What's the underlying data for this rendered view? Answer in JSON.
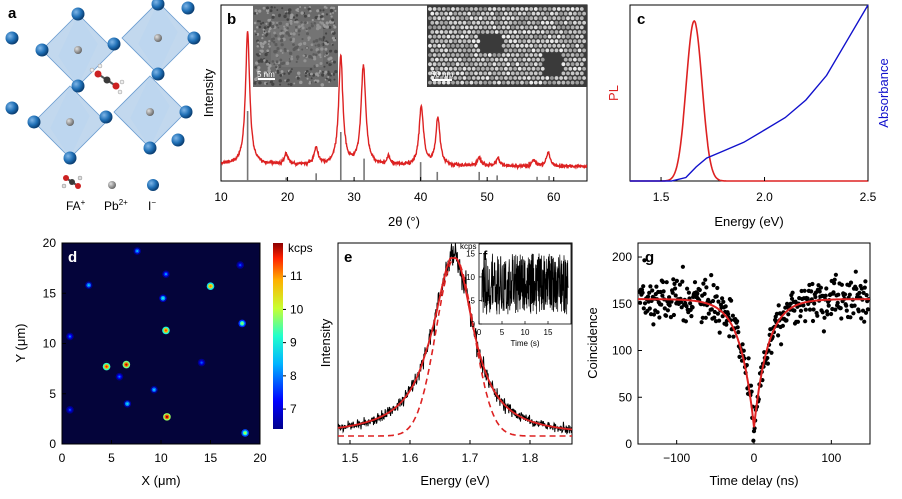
{
  "figure": {
    "panel_labels": [
      "a",
      "b",
      "c",
      "d",
      "e",
      "f",
      "g"
    ]
  },
  "legend_a": {
    "fa_label": "FA",
    "fa_sup": "+",
    "pb_label": "Pb",
    "pb_sup": "2+",
    "i_label": "I",
    "i_sup": "−",
    "colors": {
      "octahedron": "#8fb8e0",
      "iodide": "#1f6fb5",
      "lead": "#8a8a8a",
      "fa_c": "#3a3a3a",
      "fa_n": "#cc2222"
    }
  },
  "chart_data": [
    {
      "panel": "b",
      "type": "line",
      "title": "",
      "xlabel": "2θ (°)",
      "ylabel": "Intensity",
      "xlim": [
        10,
        65
      ],
      "xticks": [
        10,
        20,
        30,
        40,
        50,
        60
      ],
      "series_color": "#dd2222",
      "peaks": [
        {
          "x": 14.0,
          "h": 0.88,
          "w": 0.38
        },
        {
          "x": 19.8,
          "h": 0.07,
          "w": 0.35
        },
        {
          "x": 24.3,
          "h": 0.11,
          "w": 0.35
        },
        {
          "x": 28.0,
          "h": 0.72,
          "w": 0.38
        },
        {
          "x": 31.4,
          "h": 0.66,
          "w": 0.42
        },
        {
          "x": 35.2,
          "h": 0.05,
          "w": 0.3
        },
        {
          "x": 40.1,
          "h": 0.39,
          "w": 0.4
        },
        {
          "x": 42.6,
          "h": 0.31,
          "w": 0.38
        },
        {
          "x": 48.8,
          "h": 0.06,
          "w": 0.3
        },
        {
          "x": 51.6,
          "h": 0.06,
          "w": 0.3
        },
        {
          "x": 57.0,
          "h": 0.04,
          "w": 0.3
        },
        {
          "x": 59.2,
          "h": 0.09,
          "w": 0.35
        }
      ],
      "reference_sticks": [
        {
          "x": 14.0,
          "h": 1.0
        },
        {
          "x": 19.8,
          "h": 0.05
        },
        {
          "x": 24.3,
          "h": 0.11
        },
        {
          "x": 28.0,
          "h": 0.7
        },
        {
          "x": 31.5,
          "h": 0.32
        },
        {
          "x": 40.0,
          "h": 0.27
        },
        {
          "x": 42.5,
          "h": 0.13
        },
        {
          "x": 48.8,
          "h": 0.13
        },
        {
          "x": 51.5,
          "h": 0.08
        },
        {
          "x": 57.5,
          "h": 0.06
        },
        {
          "x": 59.3,
          "h": 0.07
        }
      ],
      "insets": [
        {
          "scale_label": "5 nm",
          "description_type": "hrtem"
        },
        {
          "scale_label": "50 nm",
          "description_type": "sem"
        }
      ]
    },
    {
      "panel": "c",
      "type": "line",
      "xlabel": "Energy (eV)",
      "ylabel_left": "PL",
      "ylabel_right": "Absorbance",
      "xlim": [
        1.35,
        2.5
      ],
      "xticks": [
        1.5,
        2.0,
        2.5
      ],
      "pl": {
        "center": 1.66,
        "fwhm": 0.09,
        "color": "#dd2222"
      },
      "absorbance": {
        "color": "#1111cc",
        "points": [
          [
            1.35,
            0.0
          ],
          [
            1.55,
            0.0
          ],
          [
            1.62,
            0.02
          ],
          [
            1.67,
            0.08
          ],
          [
            1.72,
            0.13
          ],
          [
            1.8,
            0.17
          ],
          [
            1.9,
            0.22
          ],
          [
            2.0,
            0.29
          ],
          [
            2.1,
            0.36
          ],
          [
            2.2,
            0.46
          ],
          [
            2.3,
            0.6
          ],
          [
            2.4,
            0.8
          ],
          [
            2.5,
            1.0
          ]
        ]
      }
    },
    {
      "panel": "d",
      "type": "heatmap",
      "xlabel": "X (μm)",
      "ylabel": "Y (μm)",
      "xlim": [
        0,
        20
      ],
      "ylim": [
        0,
        20
      ],
      "xticks": [
        0,
        5,
        10,
        15,
        20
      ],
      "yticks": [
        0,
        5,
        10,
        15,
        20
      ],
      "colorbar_label": "kcps",
      "colorbar_ticks": [
        7,
        8,
        9,
        10,
        11
      ],
      "colorbar_range": [
        6.4,
        12.0
      ],
      "spots": [
        {
          "x": 7.6,
          "y": 19.2,
          "v": 7.6
        },
        {
          "x": 2.7,
          "y": 15.8,
          "v": 7.8
        },
        {
          "x": 15.0,
          "y": 15.7,
          "v": 10.3
        },
        {
          "x": 10.5,
          "y": 16.9,
          "v": 7.4
        },
        {
          "x": 10.2,
          "y": 14.5,
          "v": 8.2
        },
        {
          "x": 18.2,
          "y": 12.0,
          "v": 9.0
        },
        {
          "x": 10.5,
          "y": 11.3,
          "v": 10.6
        },
        {
          "x": 0.8,
          "y": 10.7,
          "v": 7.2
        },
        {
          "x": 4.5,
          "y": 7.7,
          "v": 10.8
        },
        {
          "x": 6.5,
          "y": 7.9,
          "v": 11.1
        },
        {
          "x": 5.8,
          "y": 6.7,
          "v": 7.2
        },
        {
          "x": 9.3,
          "y": 5.4,
          "v": 7.8
        },
        {
          "x": 6.6,
          "y": 4.0,
          "v": 8.0
        },
        {
          "x": 10.6,
          "y": 2.7,
          "v": 11.3
        },
        {
          "x": 18.5,
          "y": 1.1,
          "v": 9.2
        },
        {
          "x": 0.8,
          "y": 3.4,
          "v": 6.9
        },
        {
          "x": 14.1,
          "y": 8.1,
          "v": 7.0
        },
        {
          "x": 18.0,
          "y": 17.8,
          "v": 6.9
        }
      ]
    },
    {
      "panel": "e",
      "type": "line",
      "xlabel": "Energy (eV)",
      "ylabel": "Intensity",
      "xlim": [
        1.48,
        1.87
      ],
      "xticks": [
        1.5,
        1.6,
        1.7,
        1.8
      ],
      "peak_center": 1.675,
      "fit_color": "#dd2222",
      "data_color": "#000000"
    },
    {
      "panel": "f",
      "type": "line",
      "xlabel": "Time (s)",
      "ylabel": "kcps",
      "xlim": [
        0,
        20
      ],
      "ylim": [
        0,
        17
      ],
      "xticks": [
        0,
        5,
        10,
        15
      ],
      "yticks": [
        0,
        5,
        10,
        15
      ]
    },
    {
      "panel": "g",
      "type": "scatter",
      "xlabel": "Time delay (ns)",
      "ylabel": "Coincidence",
      "xlim": [
        -150,
        150
      ],
      "ylim": [
        0,
        215
      ],
      "xticks": [
        -100,
        0,
        100
      ],
      "xtick_labels": [
        "−100",
        "0",
        "100"
      ],
      "yticks": [
        0,
        50,
        100,
        150,
        200
      ],
      "baseline": 155,
      "dip_min": 18,
      "tau_ns": 18,
      "fit_color": "#dd2222"
    }
  ]
}
